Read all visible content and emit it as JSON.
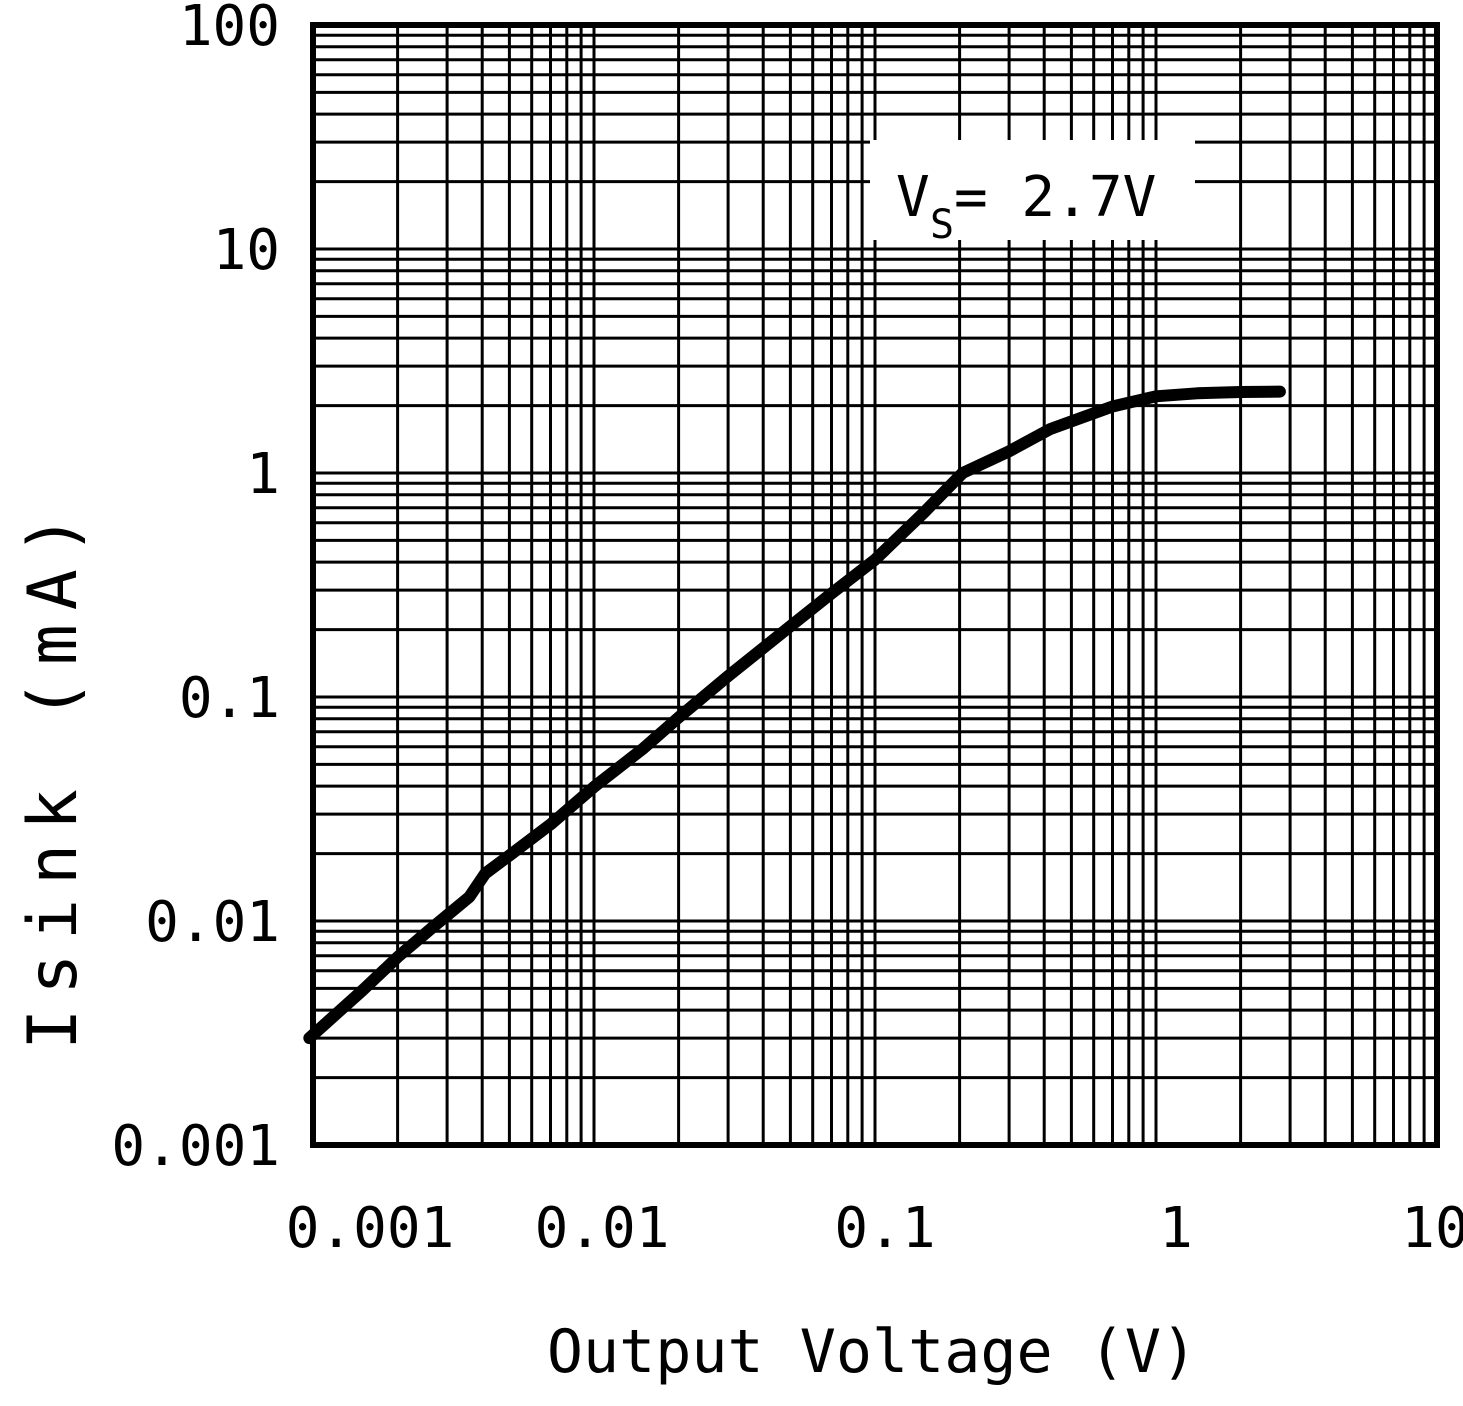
{
  "chart_data": {
    "type": "line",
    "title": "",
    "x_axis": {
      "label": "Output Voltage (V)",
      "scale": "log",
      "min": 0.001,
      "max": 10,
      "tick_values": [
        0.001,
        0.01,
        0.1,
        1,
        10
      ],
      "tick_labels": [
        "0.001",
        "0.01",
        "0.1",
        "1",
        "10"
      ]
    },
    "y_axis": {
      "label": "Isink (mA)",
      "scale": "log",
      "min": 0.001,
      "max": 100,
      "tick_values": [
        0.001,
        0.01,
        0.1,
        1,
        10,
        100
      ],
      "tick_labels": [
        "0.001",
        "0.01",
        "0.1",
        "1",
        "10",
        "100"
      ]
    },
    "grid": {
      "style": "log-log graph paper, minor lines 2-9 every decade",
      "on": true
    },
    "legend": {
      "position": "top-right-inside"
    },
    "annotation": {
      "variable": "V",
      "subscript": "S",
      "rest": "= 2.7V",
      "full_text": "VS = 2.7V"
    },
    "series": [
      {
        "name": "VS = 2.7V",
        "color": "#000000",
        "points": [
          [
            0.00097,
            0.003
          ],
          [
            0.0015,
            0.0049
          ],
          [
            0.002,
            0.0069
          ],
          [
            0.0027,
            0.0095
          ],
          [
            0.0036,
            0.0128
          ],
          [
            0.0041,
            0.0163
          ],
          [
            0.005,
            0.0196
          ],
          [
            0.007,
            0.027
          ],
          [
            0.01,
            0.0397
          ],
          [
            0.015,
            0.059
          ],
          [
            0.02,
            0.081
          ],
          [
            0.03,
            0.124
          ],
          [
            0.05,
            0.207
          ],
          [
            0.07,
            0.29
          ],
          [
            0.1,
            0.41
          ],
          [
            0.15,
            0.67
          ],
          [
            0.205,
            1.0
          ],
          [
            0.3,
            1.25
          ],
          [
            0.42,
            1.57
          ],
          [
            0.5,
            1.7
          ],
          [
            0.7,
            1.98
          ],
          [
            1.0,
            2.2
          ],
          [
            1.4,
            2.27
          ],
          [
            2.0,
            2.3
          ],
          [
            2.76,
            2.31
          ]
        ]
      }
    ],
    "colors": {
      "ink": "#000000",
      "background": "#ffffff"
    }
  }
}
